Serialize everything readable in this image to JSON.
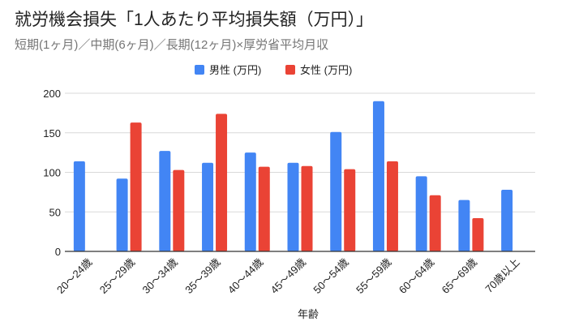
{
  "chart_data": {
    "type": "bar",
    "title": "就労機会損失「1人あたり平均損失額（万円）」",
    "subtitle": "短期(1ヶ月)／中期(6ヶ月)／長期(12ヶ月)×厚労省平均月収",
    "xlabel": "年齢",
    "ylabel": "",
    "ylim": [
      0,
      200
    ],
    "yticks": [
      0,
      50,
      100,
      150,
      200
    ],
    "grid": true,
    "legend_position": "top",
    "categories": [
      "20〜24歳",
      "25〜29歳",
      "30〜34歳",
      "35〜39歳",
      "40〜44歳",
      "45〜49歳",
      "50〜54歳",
      "55〜59歳",
      "60〜64歳",
      "65〜69歳",
      "70歳以上"
    ],
    "series": [
      {
        "name": "男性 (万円)",
        "color": "#4285F4",
        "values": [
          114,
          92,
          127,
          112,
          125,
          112,
          151,
          190,
          95,
          65,
          78
        ]
      },
      {
        "name": "女性 (万円)",
        "color": "#EA4335",
        "values": [
          null,
          163,
          103,
          174,
          107,
          108,
          104,
          114,
          71,
          42,
          null
        ]
      }
    ]
  }
}
